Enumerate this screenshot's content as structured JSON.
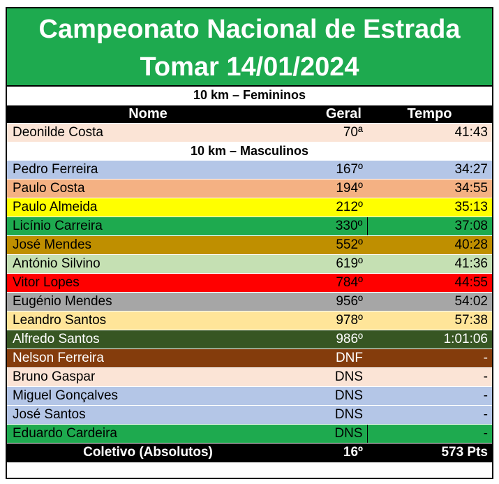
{
  "title_line1": "Campeonato Nacional de Estrada",
  "title_line2": "Tomar 14/01/2024",
  "header": {
    "nome": "Nome",
    "geral": "Geral",
    "tempo": "Tempo"
  },
  "sections": [
    {
      "label": "10 km – Femininos"
    },
    {
      "label": "10 km – Masculinos"
    }
  ],
  "colors": {
    "banner": "#1eaa4f",
    "header": "#000000"
  },
  "rows": [
    {
      "name": "Deonilde Costa",
      "geral": "70ª",
      "tempo": "41:43",
      "bg": "#fbe4d6",
      "fg": "#000000"
    },
    {
      "name": "Pedro Ferreira",
      "geral": "167º",
      "tempo": "34:27",
      "bg": "#b4c6e7",
      "fg": "#000000"
    },
    {
      "name": "Paulo Costa",
      "geral": "194º",
      "tempo": "34:55",
      "bg": "#f4b183",
      "fg": "#000000"
    },
    {
      "name": "Paulo Almeida",
      "geral": "212º",
      "tempo": "35:13",
      "bg": "#ffff00",
      "fg": "#000000"
    },
    {
      "name": "Licínio Carreira",
      "geral": "330º",
      "tempo": "37:08",
      "bg": "#1eaa4f",
      "fg": "#000000"
    },
    {
      "name": "José Mendes",
      "geral": "552º",
      "tempo": "40:28",
      "bg": "#bf8f00",
      "fg": "#000000"
    },
    {
      "name": "António Silvino",
      "geral": "619º",
      "tempo": "41:36",
      "bg": "#c5e0b3",
      "fg": "#000000"
    },
    {
      "name": "Vitor Lopes",
      "geral": "784º",
      "tempo": "44:55",
      "bg": "#ff0000",
      "fg": "#000000"
    },
    {
      "name": "Eugénio Mendes",
      "geral": "956º",
      "tempo": "54:02",
      "bg": "#a6a6a6",
      "fg": "#000000"
    },
    {
      "name": "Leandro Santos",
      "geral": "978º",
      "tempo": "57:38",
      "bg": "#ffe599",
      "fg": "#000000"
    },
    {
      "name": "Alfredo Santos",
      "geral": "986º",
      "tempo": "1:01:06",
      "bg": "#375623",
      "fg": "#ffffff"
    },
    {
      "name": "Nelson Ferreira",
      "geral": "DNF",
      "tempo": "-",
      "bg": "#843c0c",
      "fg": "#ffffff"
    },
    {
      "name": "Bruno Gaspar",
      "geral": "DNS",
      "tempo": "-",
      "bg": "#fbe4d6",
      "fg": "#000000"
    },
    {
      "name": "Miguel Gonçalves",
      "geral": "DNS",
      "tempo": "-",
      "bg": "#b4c6e7",
      "fg": "#000000"
    },
    {
      "name": "José Santos",
      "geral": "DNS",
      "tempo": "-",
      "bg": "#b4c6e7",
      "fg": "#000000"
    },
    {
      "name": "Eduardo Cardeira",
      "geral": "DNS",
      "tempo": "-",
      "bg": "#1eaa4f",
      "fg": "#000000"
    }
  ],
  "footer": {
    "label": "Coletivo (Absolutos)",
    "geral": "16º",
    "tempo": "573 Pts"
  }
}
